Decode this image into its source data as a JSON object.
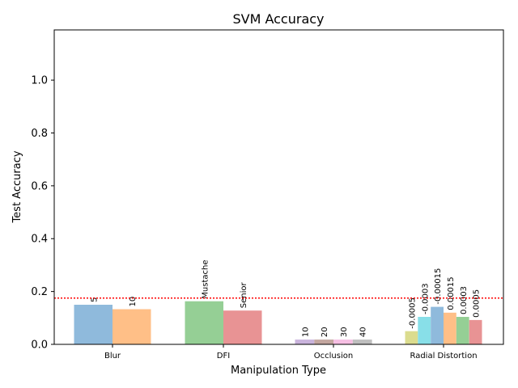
{
  "chart_data": {
    "type": "bar",
    "title": "SVM Accuracy",
    "xlabel": "Manipulation Type",
    "ylabel": "Test Accuracy",
    "ylim": [
      0,
      1.19
    ],
    "yticks": [
      "0.0",
      "0.2",
      "0.4",
      "0.6",
      "0.8",
      "1.0"
    ],
    "grid": false,
    "reference_line": {
      "value": 0.175,
      "color": "#ff0000",
      "style": "dotted"
    },
    "groups": [
      {
        "category": "Blur",
        "bars": [
          {
            "label": "5",
            "value": 0.15,
            "color": "#8fbadc"
          },
          {
            "label": "10",
            "value": 0.133,
            "color": "#ffbf87"
          }
        ]
      },
      {
        "category": "DFI",
        "bars": [
          {
            "label": "Mustache",
            "value": 0.163,
            "color": "#95cf95"
          },
          {
            "label": "Senior",
            "value": 0.128,
            "color": "#e89394"
          }
        ]
      },
      {
        "category": "Occlusion",
        "bars": [
          {
            "label": "10",
            "value": 0.018,
            "color": "#c9b3dc"
          },
          {
            "label": "20",
            "value": 0.018,
            "color": "#c3a69f"
          },
          {
            "label": "30",
            "value": 0.018,
            "color": "#f6bfe3"
          },
          {
            "label": "40",
            "value": 0.018,
            "color": "#bfbfbf"
          }
        ]
      },
      {
        "category": "Radial Distortion",
        "bars": [
          {
            "label": "-0.0005",
            "value": 0.05,
            "color": "#dbdc8e"
          },
          {
            "label": "-0.0003",
            "value": 0.104,
            "color": "#88dfe8"
          },
          {
            "label": "-0.00015",
            "value": 0.142,
            "color": "#8fbadc"
          },
          {
            "label": "0.00015",
            "value": 0.12,
            "color": "#ffbf87"
          },
          {
            "label": "0.0003",
            "value": 0.104,
            "color": "#95cf95"
          },
          {
            "label": "0.0005",
            "value": 0.092,
            "color": "#e89394"
          }
        ]
      }
    ]
  }
}
